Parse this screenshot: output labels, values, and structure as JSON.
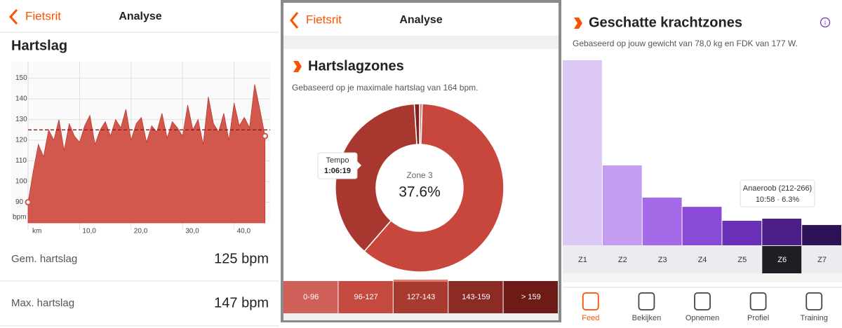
{
  "heart_rate_screen": {
    "header": {
      "back": "Fietsrit",
      "title": "Analyse"
    },
    "section_title": "Hartslag",
    "chart_data": {
      "type": "area",
      "x": [
        0,
        1,
        2,
        3,
        4,
        5,
        6,
        7,
        8,
        9,
        10,
        11,
        12,
        13,
        14,
        15,
        16,
        17,
        18,
        19,
        20,
        21,
        22,
        23,
        24,
        25,
        26,
        27,
        28,
        29,
        30,
        31,
        32,
        33,
        34,
        35,
        36,
        37,
        38,
        39,
        40,
        41,
        42,
        43,
        44,
        45,
        46
      ],
      "values": [
        90,
        105,
        118,
        112,
        125,
        120,
        130,
        115,
        128,
        122,
        119,
        127,
        132,
        118,
        125,
        129,
        122,
        130,
        126,
        135,
        120,
        128,
        131,
        119,
        127,
        124,
        133,
        121,
        129,
        126,
        122,
        137,
        125,
        130,
        118,
        141,
        128,
        124,
        133,
        120,
        138,
        127,
        131,
        126,
        147,
        135,
        122
      ],
      "color": "#d2574c",
      "average": 125,
      "xlabel": "km",
      "ylabel": "bpm",
      "xlim": [
        0,
        47
      ],
      "ylim": [
        80,
        158
      ],
      "xticks": [
        {
          "value": 10,
          "label": "10,0"
        },
        {
          "value": 20,
          "label": "20,0"
        },
        {
          "value": 30,
          "label": "30,0"
        },
        {
          "value": 40,
          "label": "40,0"
        }
      ],
      "yticks": [
        90,
        100,
        110,
        120,
        130,
        140,
        150
      ],
      "grid": true
    },
    "stats": [
      {
        "label": "Gem. hartslag",
        "value": "125 bpm"
      },
      {
        "label": "Max. hartslag",
        "value": "147 bpm"
      }
    ]
  },
  "zones_screen": {
    "header": {
      "back": "Fietsrit",
      "title": "Analyse"
    },
    "section_title": "Hartslagzones",
    "subtitle": "Gebaseerd op je maximale hartslag van 164 bpm.",
    "chart_data": {
      "type": "donut",
      "categories": [
        "0-96",
        "96-127",
        "127-143",
        "143-159",
        "> 159"
      ],
      "values": [
        0.5,
        60.9,
        37.6,
        1.0,
        0
      ],
      "value_labels": [
        null,
        null,
        "37.6%",
        null,
        null
      ],
      "colors": [
        "#d9685f",
        "#c8473d",
        "#a8382f",
        "#7d2320",
        "#6e1a17"
      ],
      "tab_colors": [
        "#d0605a",
        "#c44a3f",
        "#a83a30",
        "#8c2a26",
        "#6e1a17"
      ],
      "selected": 2,
      "center_label": "Zone 3",
      "tooltip": {
        "name": "Tempo",
        "time": "1:06:19"
      }
    }
  },
  "power_screen": {
    "section_title": "Geschatte krachtzones",
    "subtitle": "Gebaseerd op jouw gewicht van 78,0 kg en FDK van 177 W.",
    "chart_data": {
      "type": "bar",
      "categories": [
        "Z1",
        "Z2",
        "Z3",
        "Z4",
        "Z5",
        "Z6",
        "Z7"
      ],
      "values": [
        43.8,
        18.9,
        11.3,
        9.1,
        5.8,
        6.3,
        4.8
      ],
      "colors": [
        "#dcc8f5",
        "#c49cf0",
        "#a46ae8",
        "#8a4ad8",
        "#6a30b8",
        "#4c1f88",
        "#2e1258"
      ],
      "selected": 5,
      "tooltip": {
        "name": "Anaeroob (212-266)",
        "detail": "10:58 · 6.3%"
      }
    },
    "nav": [
      "Feed",
      "Bekijken",
      "Opnemen",
      "Profiel",
      "Training"
    ],
    "nav_active": 0
  }
}
